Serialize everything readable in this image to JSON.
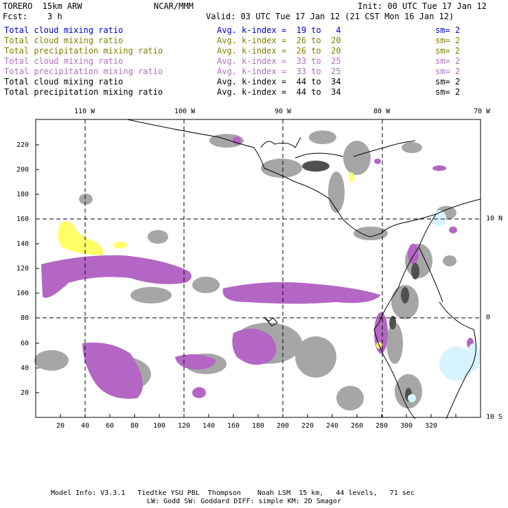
{
  "header": {
    "model": "TORERO  15km ARW",
    "center": "NCAR/MMM",
    "init": "Init: 00 UTC Tue 17 Jan 12",
    "fcst": "Fcst:    3 h",
    "valid": "Valid: 03 UTC Tue 17 Jan 12 (21 CST Mon 16 Jan 12)"
  },
  "legend": [
    {
      "field": "Total cloud mixing ratio",
      "index": "Avg. k-index =  19 to   4",
      "sm": "sm= 2",
      "color": "#0000cc"
    },
    {
      "field": "Total cloud mixing ratio",
      "index": "Avg. k-index =  26 to  20",
      "sm": "sm= 2",
      "color": "#808000"
    },
    {
      "field": "Total precipitation mixing ratio",
      "index": "Avg. k-index =  26 to  20",
      "sm": "sm= 2",
      "color": "#808000"
    },
    {
      "field": "Total cloud mixing ratio",
      "index": "Avg. k-index =  33 to  25",
      "sm": "sm= 2",
      "color": "#b070c0"
    },
    {
      "field": "Total precipitation mixing ratio",
      "index": "Avg. k-index =  33 to  25",
      "sm": "sm= 2",
      "color": "#b070c0"
    },
    {
      "field": "Total cloud mixing ratio",
      "index": "Avg. k-index =  44 to  34",
      "sm": "sm= 2",
      "color": "#000000"
    },
    {
      "field": "Total precipitation mixing ratio",
      "index": "Avg. k-index =  44 to  34",
      "sm": "sm= 2",
      "color": "#000000"
    }
  ],
  "axes": {
    "lon_labels": [
      "110 W",
      "100 W",
      "90 W",
      "80 W",
      "70 W"
    ],
    "lat_labels": [
      "10 N",
      "0",
      "10 S"
    ],
    "x_ticks": [
      "20",
      "40",
      "60",
      "80",
      "100",
      "120",
      "140",
      "160",
      "180",
      "200",
      "220",
      "240",
      "260",
      "280",
      "300",
      "320"
    ],
    "y_ticks": [
      "20",
      "40",
      "60",
      "80",
      "100",
      "120",
      "140",
      "160",
      "180",
      "200",
      "220"
    ]
  },
  "colors": {
    "gray": "#a6a6a6",
    "dark": "#505050",
    "purple": "#b366c4",
    "yellow": "#ffff66",
    "cyan": "#d6f3ff"
  },
  "footer": {
    "line1": "Model Info: V3.3.1   Tiedtke YSU PBL  Thompson    Noah LSM  15 km,   44 levels,   71 sec",
    "line2": "LW: Godd SW: Goddard DIFF: simple KM: 2D Smagor"
  }
}
